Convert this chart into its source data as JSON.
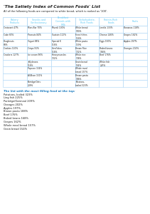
{
  "title": "'The Satiety Index of Common Foods' List",
  "subtitle": "All of the following foods are compared to white bread, which is ranked as '100'.",
  "col_headers": [
    "Bakery\nProducts",
    "Snacks and\nConfectionary",
    "Breakfast\nCereals with\nMilk",
    "Carbohydrate-\nRich Foods",
    "Protein-Rich\nFoods",
    "Fruits"
  ],
  "header_color": "#5bc8f5",
  "table_data": [
    [
      "Croissant 47%",
      "Mars Bar 70%",
      "Muesli 100%",
      "White bread\n100%",
      "Lentils 133%",
      "Bananas 118%"
    ],
    [
      "Cake 65%",
      "Peanuts 84%",
      "Sustain 112%",
      "French fries\n116%",
      "Cheese 146%",
      "Grapes 162%"
    ],
    [
      "Doughnuts\n68%",
      "Yogurt 88%",
      "Special K\n116%",
      "White pasta\n119%",
      "Eggs 150%",
      "Apples 197%"
    ],
    [
      "Cookies 120%",
      "Crisps 91%",
      "Cornflakes\n118%",
      "Brown Rice\n132%",
      "Baked beans\n168%",
      "Oranges 202%"
    ],
    [
      "Crackers 127%",
      "Ice cream 96%",
      "Honeymueslos\n132%",
      "White rice\n138%",
      "Beef 176%",
      ""
    ],
    [
      "",
      "Jellybeans\n118%",
      "",
      "Grain bread\n154%",
      "White fish\n225%",
      ""
    ],
    [
      "",
      "Popcorn 154%",
      "",
      "Whole meal\nbread 157%",
      "",
      ""
    ],
    [
      "",
      "All-Bran 151%",
      "",
      "Brown pasta\n188%",
      "",
      ""
    ],
    [
      "",
      "Porridge/Oats\n209%",
      "",
      "Potatoes,\nboiled 323%",
      "",
      ""
    ]
  ],
  "list_title": "The list with the most filling food at the top:",
  "list_title_color": "#1a7abf",
  "list_items": [
    "Potatoes, boiled 323%",
    "Ling fish 225%",
    "Porridge/Oatmeal 209%",
    "Oranges 202%",
    "Apples 197%",
    "Brown pasta 188%",
    "Beef 176%",
    "Baked beans 168%",
    "Grapes 162%",
    "Whole meal bread 157%",
    "Grain bread 154%"
  ],
  "bg_color": "#ffffff",
  "border_color": "#a8d4f5",
  "text_color": "#222222"
}
